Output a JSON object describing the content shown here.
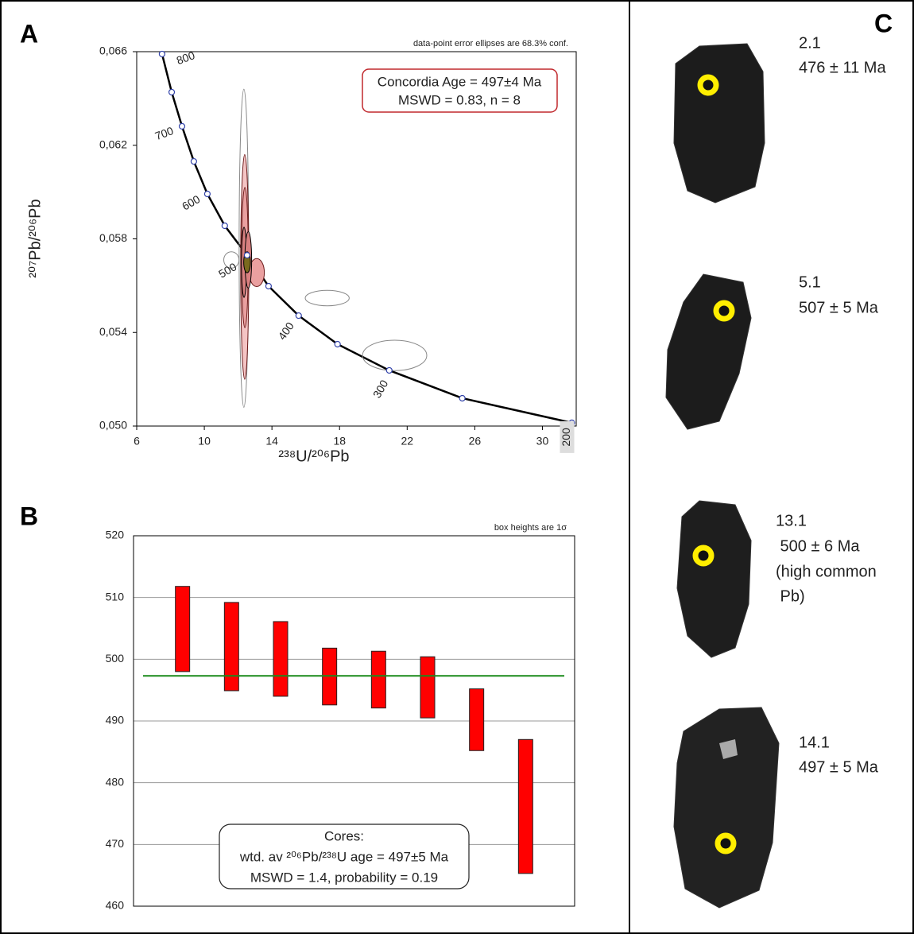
{
  "panel_labels": [
    "A",
    "B",
    "C"
  ],
  "chart_data": [
    {
      "type": "concordia",
      "note": "data-point error ellipses are 68.3% conf.",
      "annotation": [
        "Concordia Age = 497±4 Ma",
        "MSWD = 0.83, n = 8"
      ],
      "x_label": "²³⁸U/²⁰⁶Pb",
      "y_label": "²⁰⁷Pb/²⁰⁶Pb",
      "xlim": [
        6,
        32
      ],
      "ylim": [
        0.05,
        0.066
      ],
      "xticks": [
        6,
        10,
        14,
        18,
        22,
        26,
        30
      ],
      "yticks": [
        {
          "value": 0.05,
          "label": "0,050"
        },
        {
          "value": 0.054,
          "label": "0,054"
        },
        {
          "value": 0.058,
          "label": "0,058"
        },
        {
          "value": 0.062,
          "label": "0,062"
        },
        {
          "value": 0.066,
          "label": "0,066"
        }
      ],
      "x": [
        7.5,
        8.07,
        8.68,
        9.38,
        10.18,
        11.21,
        12.53,
        13.8,
        15.58,
        17.88,
        20.94,
        25.26,
        31.74
      ],
      "y": [
        0.0659,
        0.06427,
        0.06281,
        0.06131,
        0.05992,
        0.05856,
        0.0573,
        0.05598,
        0.05472,
        0.0535,
        0.05238,
        0.05119,
        0.05014
      ],
      "age_labels": [
        800,
        700,
        600,
        500,
        400,
        300,
        200
      ],
      "color": "#000000",
      "marker_color": "#3344aa",
      "ellipses": [
        {
          "x": 12.34,
          "y": 0.0576,
          "rx": 0.28,
          "ry": 0.0068,
          "fill": "none",
          "stroke": "#888888"
        },
        {
          "x": 12.39,
          "y": 0.0568,
          "rx": 0.24,
          "ry": 0.0048,
          "fill": "#f4c4c4",
          "stroke": "#6b1a1a"
        },
        {
          "x": 12.4,
          "y": 0.0572,
          "rx": 0.2,
          "ry": 0.003,
          "fill": "#eaa0a0",
          "stroke": "#6b1a1a"
        },
        {
          "x": 13.1,
          "y": 0.05656,
          "rx": 0.45,
          "ry": 0.0006,
          "fill": "#eaa0a0",
          "stroke": "#6b1a1a"
        },
        {
          "x": 11.6,
          "y": 0.0571,
          "rx": 0.45,
          "ry": 0.00035,
          "fill": "none",
          "stroke": "#888888"
        },
        {
          "x": 12.35,
          "y": 0.057,
          "rx": 0.15,
          "ry": 0.0015,
          "fill": "#d98080",
          "stroke": "#000000"
        },
        {
          "x": 12.6,
          "y": 0.0571,
          "rx": 0.2,
          "ry": 0.0012,
          "fill": "#d98080",
          "stroke": "#000000"
        },
        {
          "x": 17.27,
          "y": 0.05547,
          "rx": 1.3,
          "ry": 0.00033,
          "fill": "none",
          "stroke": "#888888"
        },
        {
          "x": 21.26,
          "y": 0.05302,
          "rx": 1.9,
          "ry": 0.00065,
          "fill": "none",
          "stroke": "#888888"
        },
        {
          "x": 12.53,
          "y": 0.057,
          "rx": 0.2,
          "ry": 0.00045,
          "fill": "#7a6a1e",
          "stroke": "#000000"
        }
      ]
    },
    {
      "type": "boxes",
      "note": "box heights are 1σ",
      "annotation": [
        "Cores:",
        "wtd. av ²⁰⁶Pb/²³⁸U age = 497±5 Ma",
        "MSWD = 1.4, probability = 0.19"
      ],
      "lows": [
        498.0,
        494.9,
        494.0,
        492.6,
        492.1,
        490.5,
        485.2,
        465.3
      ],
      "highs": [
        511.8,
        509.2,
        506.1,
        501.8,
        501.3,
        500.4,
        495.2,
        487.0
      ],
      "mean": 497.3,
      "mean_color": "#1a8a1a",
      "color": "#ff0000",
      "ylim": [
        460,
        520
      ],
      "yticks": [
        460,
        470,
        480,
        490,
        500,
        510,
        520
      ],
      "grid": true
    }
  ],
  "panel_c": {
    "grains": [
      {
        "spot": "2.1",
        "age": "476 ± 11 Ma"
      },
      {
        "spot": "5.1",
        "age": "507 ± 5 Ma"
      },
      {
        "spot": "13.1",
        "age": " 500 ± 6 Ma",
        "note": [
          "(high common",
          " Pb)"
        ]
      },
      {
        "spot": "14.1",
        "age": "497 ± 5 Ma"
      }
    ]
  }
}
